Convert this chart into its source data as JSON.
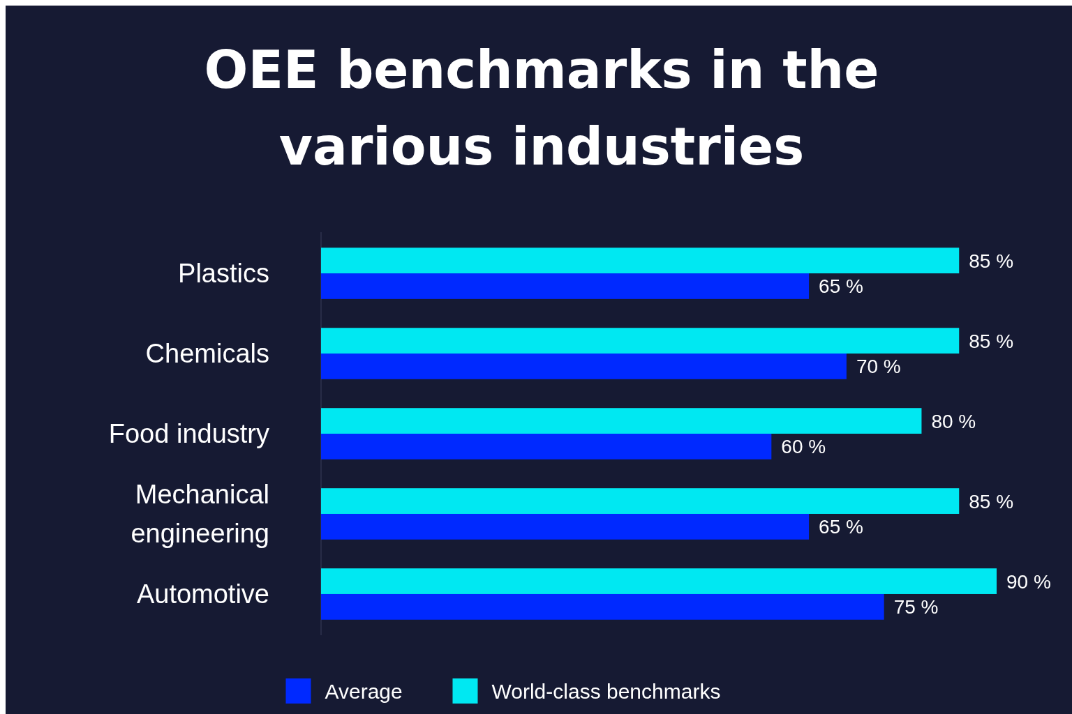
{
  "chart_data": {
    "type": "bar",
    "orientation": "horizontal",
    "title": "OEE benchmarks in the various industries",
    "categories": [
      "Plastics",
      "Chemicals",
      "Food industry",
      "Mechanical engineering",
      "Automotive"
    ],
    "series": [
      {
        "name": "Average",
        "color": "#0029ff",
        "values": [
          65,
          70,
          60,
          65,
          75
        ],
        "value_labels": [
          "65 %",
          "70 %",
          "60 %",
          "65 %",
          "75 %"
        ]
      },
      {
        "name": "World-class benchmarks",
        "color": "#00e8f2",
        "values": [
          85,
          85,
          80,
          85,
          90
        ],
        "value_labels": [
          "85 %",
          "85 %",
          "80 %",
          "85 %",
          "90 %"
        ]
      }
    ],
    "legend": "bottom"
  }
}
